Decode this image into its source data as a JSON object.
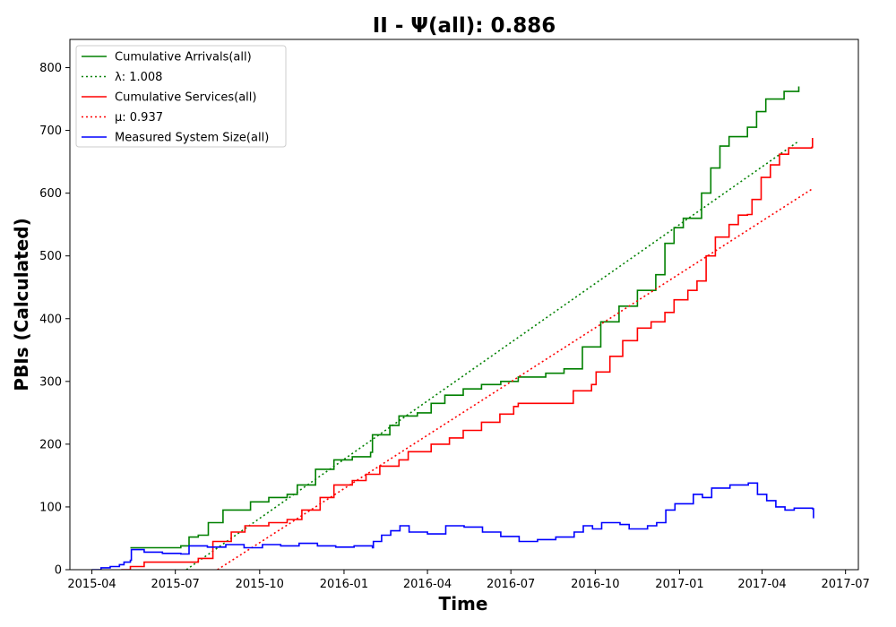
{
  "chart_data": {
    "type": "line",
    "title": "II -  Ψ(all): 0.886",
    "xlabel": "Time",
    "ylabel": "PBIs (Calculated)",
    "xlim": [
      "2015-03-08",
      "2017-07-15"
    ],
    "ylim": [
      0,
      845
    ],
    "x_ticks": [
      "2015-04",
      "2015-07",
      "2015-10",
      "2016-01",
      "2016-04",
      "2016-07",
      "2016-10",
      "2017-01",
      "2017-04",
      "2017-07"
    ],
    "y_ticks": [
      0,
      100,
      200,
      300,
      400,
      500,
      600,
      700,
      800
    ],
    "grid": false,
    "legend_position": "top-left",
    "series": [
      {
        "name": "Cumulative Arrivals(all)",
        "color": "#008000",
        "style": "solid",
        "points": [
          [
            "2015-05-13",
            35
          ],
          [
            "2015-07-07",
            38
          ],
          [
            "2015-07-16",
            52
          ],
          [
            "2015-07-26",
            55
          ],
          [
            "2015-08-06",
            75
          ],
          [
            "2015-08-22",
            95
          ],
          [
            "2015-09-21",
            108
          ],
          [
            "2015-10-11",
            115
          ],
          [
            "2015-10-31",
            120
          ],
          [
            "2015-11-11",
            135
          ],
          [
            "2015-12-01",
            160
          ],
          [
            "2015-12-21",
            175
          ],
          [
            "2016-01-10",
            180
          ],
          [
            "2016-01-30",
            187
          ],
          [
            "2016-02-01",
            215
          ],
          [
            "2016-02-20",
            230
          ],
          [
            "2016-03-01",
            245
          ],
          [
            "2016-03-21",
            250
          ],
          [
            "2016-04-05",
            265
          ],
          [
            "2016-04-20",
            278
          ],
          [
            "2016-05-10",
            288
          ],
          [
            "2016-05-30",
            295
          ],
          [
            "2016-06-20",
            300
          ],
          [
            "2016-07-09",
            307
          ],
          [
            "2016-08-08",
            313
          ],
          [
            "2016-08-28",
            320
          ],
          [
            "2016-09-17",
            355
          ],
          [
            "2016-10-07",
            395
          ],
          [
            "2016-10-27",
            420
          ],
          [
            "2016-11-16",
            445
          ],
          [
            "2016-12-06",
            470
          ],
          [
            "2016-12-16",
            520
          ],
          [
            "2016-12-26",
            545
          ],
          [
            "2017-01-05",
            560
          ],
          [
            "2017-01-25",
            600
          ],
          [
            "2017-02-04",
            640
          ],
          [
            "2017-02-14",
            675
          ],
          [
            "2017-02-24",
            690
          ],
          [
            "2017-03-16",
            705
          ],
          [
            "2017-03-26",
            730
          ],
          [
            "2017-04-05",
            750
          ],
          [
            "2017-04-25",
            762
          ],
          [
            "2017-05-11",
            770
          ]
        ]
      },
      {
        "name": "λ: 1.008",
        "color": "#008000",
        "style": "dotted",
        "points": [
          [
            "2015-07-13",
            0
          ],
          [
            "2017-05-11",
            683
          ]
        ]
      },
      {
        "name": "Cumulative Services(all)",
        "color": "#ff0000",
        "style": "solid",
        "points": [
          [
            "2015-05-03",
            0
          ],
          [
            "2015-05-13",
            5
          ],
          [
            "2015-05-28",
            12
          ],
          [
            "2015-07-26",
            18
          ],
          [
            "2015-08-11",
            45
          ],
          [
            "2015-08-31",
            60
          ],
          [
            "2015-09-15",
            70
          ],
          [
            "2015-10-11",
            75
          ],
          [
            "2015-10-31",
            80
          ],
          [
            "2015-11-16",
            95
          ],
          [
            "2015-12-06",
            115
          ],
          [
            "2015-12-21",
            135
          ],
          [
            "2016-01-10",
            142
          ],
          [
            "2016-01-25",
            152
          ],
          [
            "2016-02-09",
            165
          ],
          [
            "2016-03-01",
            175
          ],
          [
            "2016-03-11",
            188
          ],
          [
            "2016-04-05",
            200
          ],
          [
            "2016-04-25",
            210
          ],
          [
            "2016-05-10",
            222
          ],
          [
            "2016-05-30",
            235
          ],
          [
            "2016-06-19",
            248
          ],
          [
            "2016-07-04",
            260
          ],
          [
            "2016-07-09",
            265
          ],
          [
            "2016-09-02",
            265
          ],
          [
            "2016-09-07",
            285
          ],
          [
            "2016-09-27",
            295
          ],
          [
            "2016-10-02",
            315
          ],
          [
            "2016-10-17",
            340
          ],
          [
            "2016-10-31",
            365
          ],
          [
            "2016-11-16",
            385
          ],
          [
            "2016-12-01",
            395
          ],
          [
            "2016-12-16",
            410
          ],
          [
            "2016-12-26",
            430
          ],
          [
            "2017-01-10",
            445
          ],
          [
            "2017-01-20",
            460
          ],
          [
            "2017-01-30",
            500
          ],
          [
            "2017-02-09",
            530
          ],
          [
            "2017-02-24",
            550
          ],
          [
            "2017-03-06",
            565
          ],
          [
            "2017-03-16",
            566
          ],
          [
            "2017-03-21",
            590
          ],
          [
            "2017-03-31",
            625
          ],
          [
            "2017-04-10",
            645
          ],
          [
            "2017-04-20",
            662
          ],
          [
            "2017-04-30",
            672
          ],
          [
            "2017-05-25",
            673
          ],
          [
            "2017-05-26",
            688
          ]
        ]
      },
      {
        "name": "μ: 0.937",
        "color": "#ff0000",
        "style": "dotted",
        "points": [
          [
            "2015-08-16",
            0
          ],
          [
            "2017-05-26",
            607
          ]
        ]
      },
      {
        "name": "Measured System Size(all)",
        "color": "#0000ff",
        "style": "solid",
        "points": [
          [
            "2015-04-01",
            0
          ],
          [
            "2015-04-11",
            3
          ],
          [
            "2015-04-21",
            5
          ],
          [
            "2015-05-01",
            8
          ],
          [
            "2015-05-06",
            12
          ],
          [
            "2015-05-13",
            15
          ],
          [
            "2015-05-14",
            32
          ],
          [
            "2015-05-28",
            28
          ],
          [
            "2015-06-17",
            26
          ],
          [
            "2015-07-07",
            25
          ],
          [
            "2015-07-16",
            38
          ],
          [
            "2015-08-05",
            36
          ],
          [
            "2015-08-25",
            40
          ],
          [
            "2015-09-14",
            35
          ],
          [
            "2015-10-04",
            40
          ],
          [
            "2015-10-24",
            38
          ],
          [
            "2015-11-13",
            42
          ],
          [
            "2015-12-03",
            38
          ],
          [
            "2015-12-23",
            36
          ],
          [
            "2016-01-12",
            38
          ],
          [
            "2016-02-01",
            35
          ],
          [
            "2016-02-02",
            45
          ],
          [
            "2016-02-11",
            55
          ],
          [
            "2016-02-21",
            62
          ],
          [
            "2016-03-02",
            70
          ],
          [
            "2016-03-12",
            60
          ],
          [
            "2016-04-01",
            57
          ],
          [
            "2016-04-21",
            70
          ],
          [
            "2016-05-11",
            68
          ],
          [
            "2016-05-31",
            60
          ],
          [
            "2016-06-20",
            53
          ],
          [
            "2016-07-10",
            45
          ],
          [
            "2016-07-30",
            48
          ],
          [
            "2016-08-19",
            52
          ],
          [
            "2016-09-08",
            60
          ],
          [
            "2016-09-18",
            70
          ],
          [
            "2016-09-28",
            65
          ],
          [
            "2016-10-08",
            75
          ],
          [
            "2016-10-28",
            72
          ],
          [
            "2016-11-07",
            65
          ],
          [
            "2016-11-27",
            70
          ],
          [
            "2016-12-07",
            75
          ],
          [
            "2016-12-17",
            95
          ],
          [
            "2016-12-27",
            105
          ],
          [
            "2017-01-06",
            105
          ],
          [
            "2017-01-16",
            120
          ],
          [
            "2017-01-26",
            115
          ],
          [
            "2017-02-05",
            130
          ],
          [
            "2017-02-25",
            135
          ],
          [
            "2017-03-17",
            138
          ],
          [
            "2017-03-27",
            120
          ],
          [
            "2017-04-06",
            110
          ],
          [
            "2017-04-16",
            100
          ],
          [
            "2017-04-26",
            95
          ],
          [
            "2017-05-06",
            98
          ],
          [
            "2017-05-26",
            97
          ],
          [
            "2017-05-27",
            82
          ]
        ]
      }
    ]
  }
}
